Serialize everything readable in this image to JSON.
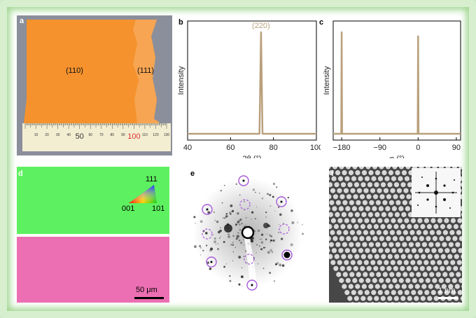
{
  "panels": {
    "a": {
      "label": "a",
      "regions": [
        "(110)",
        "(111)"
      ],
      "ruler": {
        "major": [
          "10",
          "20",
          "30",
          "40",
          "50",
          "60",
          "70",
          "80",
          "90",
          "100",
          "110",
          "120",
          "130"
        ],
        "highlight": "100",
        "big_labels": [
          "50",
          "100"
        ]
      }
    },
    "b": {
      "label": "b"
    },
    "c": {
      "label": "c"
    },
    "d": {
      "label": "d",
      "triangle_labels": {
        "top": "111",
        "left": "001",
        "right": "101"
      },
      "scalebar": "50 μm",
      "colors": {
        "top_map": "#5df060",
        "bottom_map": "#ec6fb3"
      }
    },
    "e": {
      "label": "e"
    },
    "f": {
      "label": "f",
      "scalebar": "1 nm"
    }
  },
  "chart_data": [
    {
      "type": "line",
      "panel": "b",
      "title": "",
      "xlabel": "2θ (°)",
      "ylabel": "Intensity",
      "xlim": [
        40,
        100
      ],
      "xticks": [
        40,
        60,
        80,
        100
      ],
      "peak_label": "(220)",
      "x": [
        40,
        73.5,
        74.2,
        74.9,
        100
      ],
      "y": [
        0.02,
        0.02,
        1.0,
        0.02,
        0.02
      ],
      "color": "#b9a07c"
    },
    {
      "type": "line",
      "panel": "c",
      "title": "",
      "xlabel": "φ (°)",
      "ylabel": "Intensity",
      "xlim": [
        -200,
        100
      ],
      "xticks": [
        -180,
        -90,
        0,
        90
      ],
      "x": [
        -200,
        -181,
        -180,
        -179,
        -1,
        0,
        1,
        100
      ],
      "y": [
        0.02,
        0.02,
        1.0,
        0.02,
        0.02,
        0.96,
        0.02,
        0.02
      ],
      "color": "#b9a07c"
    }
  ]
}
